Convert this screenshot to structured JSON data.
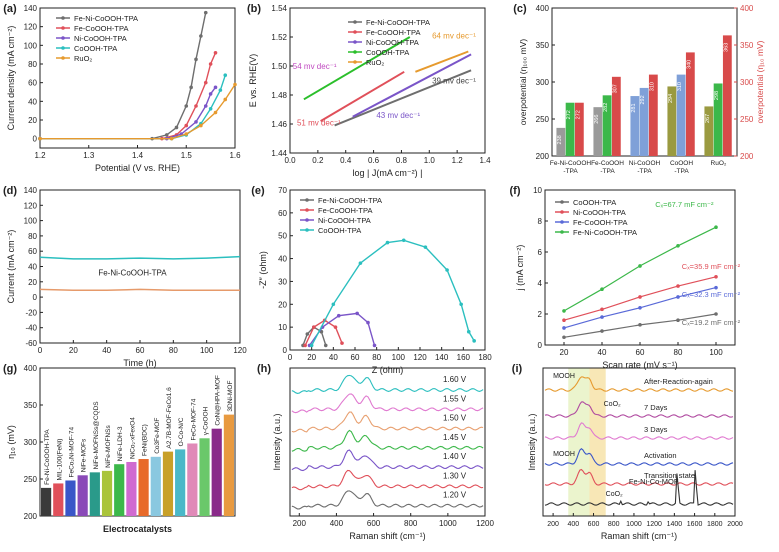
{
  "chart_data": [
    {
      "panel": "(a)",
      "type": "line",
      "xlabel": "Potential (V vs. RHE)",
      "ylabel": "Current density (mA cm⁻²)",
      "xlim": [
        1.2,
        1.6
      ],
      "ylim": [
        -10,
        140
      ],
      "xticks": [
        1.2,
        1.3,
        1.4,
        1.5,
        1.6
      ],
      "yticks": [
        0,
        20,
        40,
        60,
        80,
        100,
        120,
        140
      ],
      "legend": "top-left",
      "series": [
        {
          "name": "Fe-Ni-CoOOH-TPA",
          "color": "#6e6e6e",
          "points": [
            [
              1.2,
              0
            ],
            [
              1.43,
              0
            ],
            [
              1.46,
              4
            ],
            [
              1.48,
              12
            ],
            [
              1.5,
              35
            ],
            [
              1.51,
              55
            ],
            [
              1.52,
              85
            ],
            [
              1.53,
              110
            ],
            [
              1.54,
              135
            ]
          ]
        },
        {
          "name": "Fe-CoOOH-TPA",
          "color": "#e0505a",
          "points": [
            [
              1.2,
              0
            ],
            [
              1.45,
              0
            ],
            [
              1.48,
              4
            ],
            [
              1.5,
              14
            ],
            [
              1.52,
              35
            ],
            [
              1.54,
              60
            ],
            [
              1.55,
              80
            ],
            [
              1.56,
              92
            ]
          ]
        },
        {
          "name": "Ni-CoOOH-TPA",
          "color": "#7a55c8",
          "points": [
            [
              1.2,
              0
            ],
            [
              1.46,
              0
            ],
            [
              1.49,
              5
            ],
            [
              1.52,
              18
            ],
            [
              1.54,
              35
            ],
            [
              1.55,
              48
            ],
            [
              1.56,
              55
            ]
          ]
        },
        {
          "name": "CoOOH-TPA",
          "color": "#2bbfbf",
          "points": [
            [
              1.2,
              0
            ],
            [
              1.47,
              0
            ],
            [
              1.5,
              4
            ],
            [
              1.53,
              16
            ],
            [
              1.55,
              32
            ],
            [
              1.57,
              52
            ],
            [
              1.58,
              68
            ]
          ]
        },
        {
          "name": "RuO₂",
          "color": "#e69a2e",
          "points": [
            [
              1.2,
              0
            ],
            [
              1.47,
              0
            ],
            [
              1.5,
              5
            ],
            [
              1.53,
              14
            ],
            [
              1.56,
              28
            ],
            [
              1.58,
              42
            ],
            [
              1.6,
              58
            ]
          ]
        }
      ]
    },
    {
      "panel": "(b)",
      "type": "line",
      "xlabel": "log | J(mA cm⁻²) |",
      "ylabel": "E vs. RHE(V)",
      "xlim": [
        0.0,
        1.4
      ],
      "ylim": [
        1.44,
        1.54
      ],
      "xticks": [
        0.0,
        0.2,
        0.4,
        0.6,
        0.8,
        1.0,
        1.2,
        1.4
      ],
      "yticks": [
        1.44,
        1.46,
        1.48,
        1.5,
        1.52,
        1.54
      ],
      "legend": "top-right",
      "series": [
        {
          "name": "Fe-Ni-CoOOH-TPA",
          "color": "#6e6e6e",
          "points": [
            [
              0.32,
              1.459
            ],
            [
              1.3,
              1.497
            ]
          ],
          "annotation": "39 mv dec⁻¹"
        },
        {
          "name": "Fe-CoOOH-TPA",
          "color": "#e0505a",
          "points": [
            [
              0.22,
              1.462
            ],
            [
              0.82,
              1.496
            ]
          ],
          "annotation": "51 mv dec⁻¹"
        },
        {
          "name": "Ni-CoOOH-TPA",
          "color": "#7a55c8",
          "points": [
            [
              0.45,
              1.465
            ],
            [
              1.3,
              1.508
            ]
          ],
          "annotation": "43 mv dec⁻¹"
        },
        {
          "name": "CoOOH-TPA",
          "color": "#2bbf2b",
          "points": [
            [
              0.1,
              1.477
            ],
            [
              0.86,
              1.52
            ]
          ],
          "annotation": "54 mv dec⁻¹"
        },
        {
          "name": "RuO₂",
          "color": "#e69a2e",
          "points": [
            [
              0.9,
              1.496
            ],
            [
              1.28,
              1.51
            ]
          ],
          "annotation": "64 mv dec⁻¹"
        }
      ]
    },
    {
      "panel": "(c)",
      "type": "bar",
      "ylabel_left": "overpotential (η₁₀₀ mV)",
      "ylabel_right": "overpotential (η₁₀ mV)",
      "ylim": [
        200,
        400
      ],
      "yticks": [
        200,
        250,
        300,
        350,
        400
      ],
      "categories": [
        "Fe-Ni-CoOOH\n-TPA",
        "Fe-CoOOH\n-TPA",
        "Ni-CoOOH\n-TPA",
        "CoOOH\n-TPA",
        "RuO₂"
      ],
      "series": [
        {
          "name": "η₁₀",
          "values": [
            238,
            266,
            281,
            294,
            267
          ]
        },
        {
          "name": "η₁₀₀",
          "values": [
            272,
            282,
            292,
            310,
            298
          ]
        },
        {
          "name": "η₁₀ (right)",
          "values": [
            272,
            307,
            310,
            340,
            363
          ]
        }
      ],
      "colors": {
        "grey": "#9a9a9a",
        "green": "#3cb84a",
        "blue": "#7fa0d8",
        "purple": "#a24ea6",
        "olive": "#9a9a40",
        "red": "#d84a4a"
      }
    },
    {
      "panel": "(d)",
      "type": "line",
      "xlabel": "Time (h)",
      "ylabel": "Current (mA cm⁻²)",
      "xlim": [
        0,
        120
      ],
      "ylim": [
        -60,
        140
      ],
      "xticks": [
        0,
        20,
        40,
        60,
        80,
        100,
        120
      ],
      "yticks": [
        -60,
        -40,
        -20,
        0,
        20,
        40,
        60,
        80,
        100,
        120,
        140
      ],
      "annotation": "Fe-Ni-CoOOH-TPA",
      "series": [
        {
          "name": "Fe-Ni-CoOOH-TPA",
          "color": "#2bbfbf",
          "points": [
            [
              0,
              52
            ],
            [
              20,
              50
            ],
            [
              40,
              50
            ],
            [
              60,
              51
            ],
            [
              80,
              50
            ],
            [
              100,
              51
            ],
            [
              120,
              53
            ]
          ]
        },
        {
          "name": "Fe-Ni-CoOOH-TPA",
          "color": "#e69a6a",
          "points": [
            [
              0,
              10
            ],
            [
              20,
              9
            ],
            [
              40,
              9
            ],
            [
              60,
              10
            ],
            [
              80,
              9
            ],
            [
              100,
              9
            ],
            [
              120,
              9
            ]
          ]
        }
      ]
    },
    {
      "panel": "(e)",
      "type": "line",
      "xlabel": "Z (ohm)",
      "ylabel": "-Z″ (ohm)",
      "xlim": [
        0,
        180
      ],
      "ylim": [
        0,
        70
      ],
      "xticks": [
        0,
        20,
        40,
        60,
        80,
        100,
        120,
        140,
        160,
        180
      ],
      "yticks": [
        0,
        10,
        20,
        30,
        40,
        50,
        60,
        70
      ],
      "legend": "top-left",
      "series": [
        {
          "name": "Fe-Ni-CoOOH-TPA",
          "color": "#6e6e6e",
          "points": [
            [
              12,
              2
            ],
            [
              16,
              7
            ],
            [
              22,
              10
            ],
            [
              29,
              8
            ],
            [
              33,
              2
            ]
          ]
        },
        {
          "name": "Fe-CoOOH-TPA",
          "color": "#e0505a",
          "points": [
            [
              14,
              2
            ],
            [
              22,
              10
            ],
            [
              32,
              13
            ],
            [
              42,
              10
            ],
            [
              48,
              3
            ]
          ]
        },
        {
          "name": "Ni-CoOOH-TPA",
          "color": "#7a55c8",
          "points": [
            [
              18,
              2
            ],
            [
              30,
              10
            ],
            [
              45,
              15
            ],
            [
              62,
              16
            ],
            [
              72,
              12
            ],
            [
              78,
              2
            ]
          ]
        },
        {
          "name": "CoOOH-TPA",
          "color": "#2bbfbf",
          "points": [
            [
              20,
              2
            ],
            [
              40,
              20
            ],
            [
              65,
              38
            ],
            [
              90,
              47
            ],
            [
              105,
              48
            ],
            [
              125,
              45
            ],
            [
              145,
              35
            ],
            [
              158,
              20
            ],
            [
              165,
              8
            ],
            [
              170,
              4
            ]
          ]
        }
      ]
    },
    {
      "panel": "(f)",
      "type": "scatter",
      "xlabel": "Scan rate (mV s⁻¹)",
      "ylabel": "j (mA cm⁻²)",
      "xlim": [
        10,
        110
      ],
      "ylim": [
        0,
        10
      ],
      "xticks": [
        20,
        40,
        60,
        80,
        100
      ],
      "yticks": [
        0,
        2,
        4,
        6,
        8,
        10
      ],
      "x": [
        20,
        40,
        60,
        80,
        100
      ],
      "series": [
        {
          "name": "CoOOH-TPA",
          "color": "#6e6e6e",
          "values": [
            0.5,
            0.9,
            1.3,
            1.6,
            2.0
          ],
          "annotation": "Cₓ=19.2 mF cm⁻²"
        },
        {
          "name": "Ni-CoOOH-TPA",
          "color": "#e0505a",
          "values": [
            1.6,
            2.3,
            3.1,
            3.8,
            4.4
          ],
          "annotation": "Cₓ=35.9 mF cm⁻²"
        },
        {
          "name": "Fe-CoOOH-TPA",
          "color": "#5a6ad8",
          "values": [
            1.1,
            1.8,
            2.4,
            3.1,
            3.7
          ],
          "annotation": "Cₓ=32.3 mF cm⁻²"
        },
        {
          "name": "Fe-Ni-CoOOH-TPA",
          "color": "#3cb84a",
          "values": [
            2.2,
            3.6,
            5.1,
            6.4,
            7.6
          ],
          "annotation": "Cₓ=67.7 mF cm⁻²"
        }
      ]
    },
    {
      "panel": "(g)",
      "type": "bar",
      "xlabel": "Electrocatalysts",
      "ylabel": "η₁₀ (mV)",
      "ylim": [
        200,
        400
      ],
      "yticks": [
        200,
        250,
        300,
        350,
        400
      ],
      "categories": [
        "Fe-Ni-CoOOH-TPA",
        "MIL-100(FeNi)",
        "FeCo₂Ni-MOF-74",
        "NiFe-MOFs",
        "NiFe-MOFNSs@CQDS",
        "NiFe-MOFNSs",
        "NiFe-LDH-3",
        "NiCo₂-xFexO4",
        "FeNi(BDC)",
        "Co3Fe-MOF",
        "A2.7B-MOF-FeCo1.6",
        "O-Co-N/C",
        "FeCo-MOF-74",
        "γ-CoOOH",
        "CoNi@HPA-MOF",
        "3DNi-MOF"
      ],
      "values": [
        238,
        244,
        248,
        255,
        259,
        261,
        270,
        273,
        277,
        280,
        287,
        290,
        298,
        305,
        318,
        337
      ],
      "colors": [
        "#3a3a3a",
        "#e0505a",
        "#3a56c8",
        "#8a4ab8",
        "#2a9a8a",
        "#aac43a",
        "#3cb84a",
        "#d06ad0",
        "#e86a2a",
        "#8ac8e0",
        "#c8a028",
        "#4ab8c8",
        "#e08ab8",
        "#6ac86a",
        "#8a2a8a",
        "#e89a40"
      ]
    },
    {
      "panel": "(h)",
      "type": "line",
      "xlabel": "Raman shift (cm⁻¹)",
      "ylabel": "Intensity (a.u.)",
      "xlim": [
        150,
        1200
      ],
      "xticks": [
        200,
        400,
        600,
        800,
        1000,
        1200
      ],
      "traces": [
        {
          "label": "1.60 V",
          "color": "#2bbfbf"
        },
        {
          "label": "1.55 V",
          "color": "#e07ad0"
        },
        {
          "label": "1.50 V",
          "color": "#e8a070"
        },
        {
          "label": "1.45 V",
          "color": "#3cb84a"
        },
        {
          "label": "1.40 V",
          "color": "#7a55c8"
        },
        {
          "label": "1.30 V",
          "color": "#e0505a"
        },
        {
          "label": "1.20 V",
          "color": "#6e6e6e"
        }
      ]
    },
    {
      "panel": "(i)",
      "type": "line",
      "xlabel": "Raman shift (cm⁻¹)",
      "ylabel": "Intensity (a.u.)",
      "xlim": [
        100,
        2000
      ],
      "xticks": [
        200,
        400,
        600,
        800,
        1000,
        1200,
        1400,
        1600,
        1800,
        2000
      ],
      "traces": [
        {
          "label": "After-Reaction-again",
          "color": "#e69a2e"
        },
        {
          "label": "7 Days",
          "color": "#b04aa0"
        },
        {
          "label": "3 Days",
          "color": "#e07ad0"
        },
        {
          "label": "Activation",
          "color": "#3a56c8"
        },
        {
          "label": "Transition state",
          "color": "#e0505a"
        },
        {
          "label": "Fe-Ni-Co-MOF",
          "color": "#333333"
        }
      ],
      "annotations": [
        "MOOH",
        "CoO₂",
        "MOOH",
        "CoO₂"
      ]
    }
  ]
}
